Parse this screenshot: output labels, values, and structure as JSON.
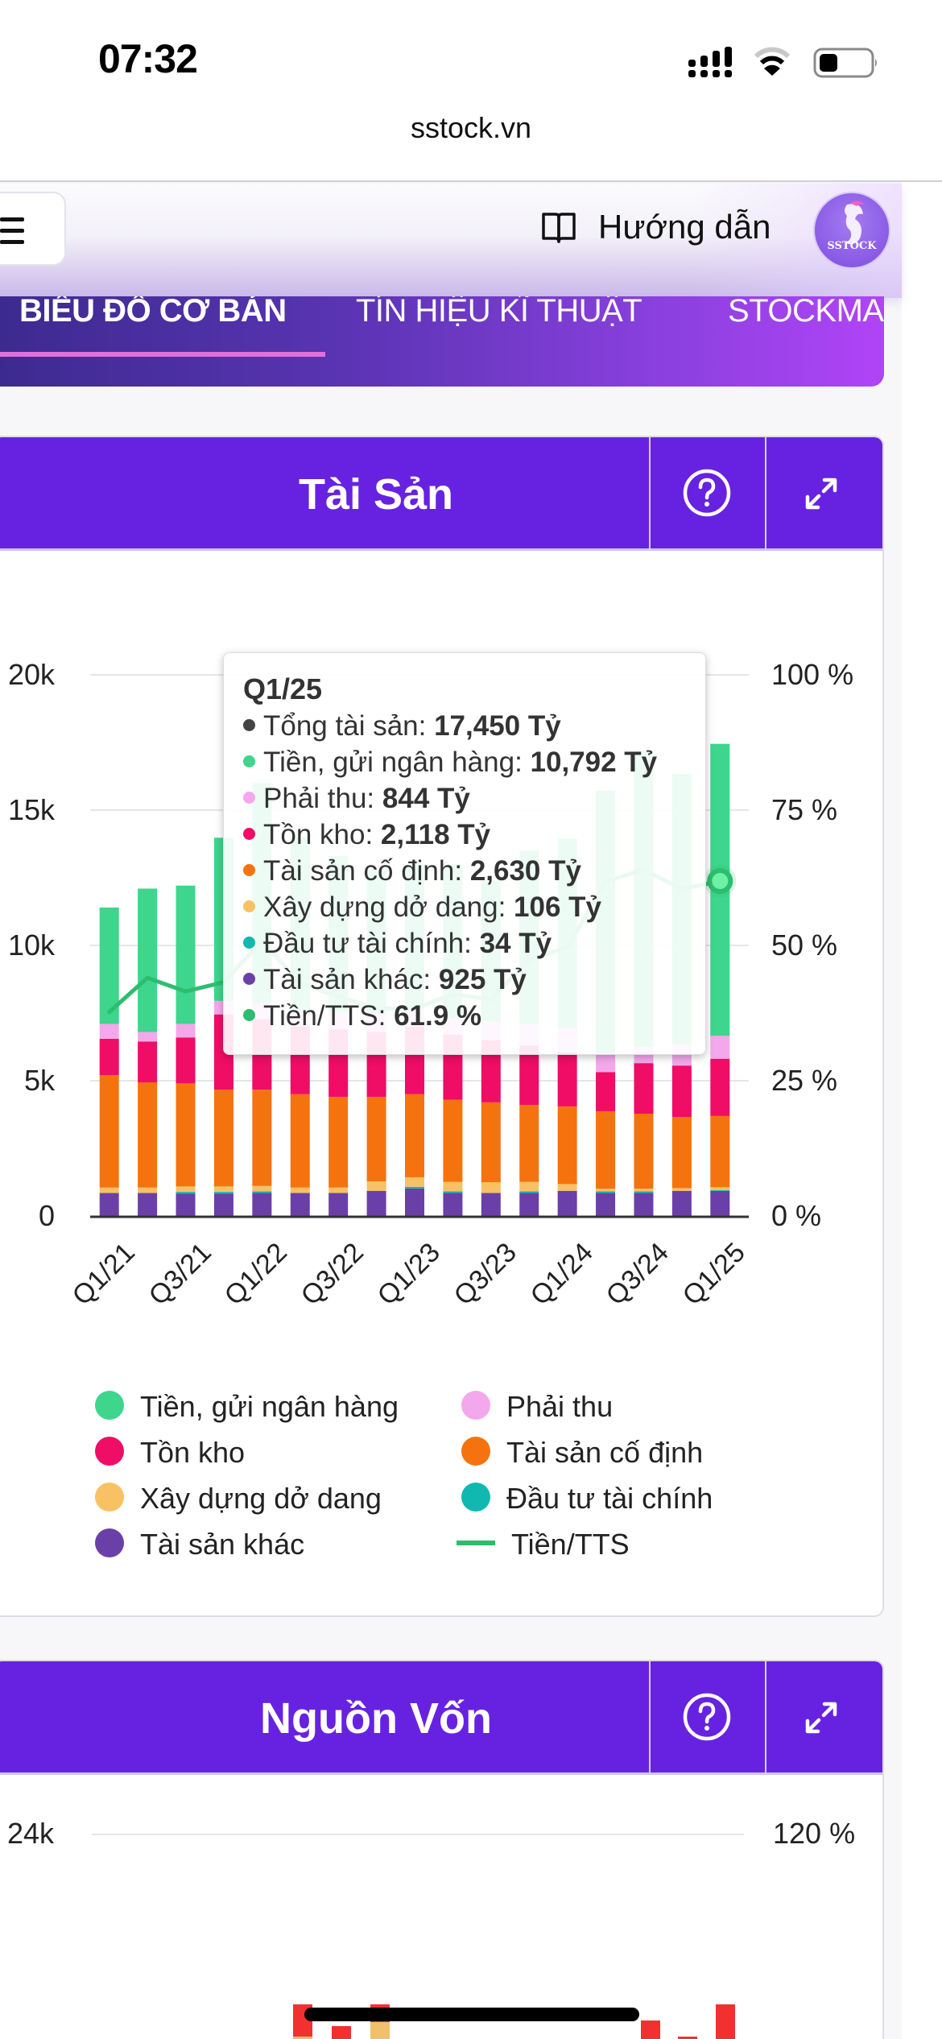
{
  "status_bar": {
    "time": "07:32",
    "signal_icon": "cellular-signal-icon",
    "wifi_icon": "wifi-icon",
    "battery_icon": "battery-low-icon"
  },
  "browser": {
    "url": "sstock.vn"
  },
  "header": {
    "menu_icon": "hamburger-menu-icon",
    "guide_label": "Hướng dẫn",
    "guide_icon": "book-open-icon",
    "logo_text": "SSTOCK"
  },
  "tabs": [
    {
      "label": "BIỂU ĐỒ CƠ BẢN",
      "active": true
    },
    {
      "label": "TÍN HIỆU KĨ THUẬT",
      "active": false
    },
    {
      "label": "STOCKMA",
      "active": false
    }
  ],
  "colors": {
    "brand_purple": "#6722e1",
    "tab_underline": "#e46fd8",
    "cash": "#3dd68c",
    "receivable": "#f4a8ec",
    "inventory": "#ef0d66",
    "fixed_assets": "#f5730f",
    "construction": "#f8c163",
    "financial_invest": "#10b8b0",
    "other_assets": "#6b3fa8",
    "ratio_line": "#2dbd6e"
  },
  "cards": [
    {
      "title": "Tài Sản",
      "help_icon": "question-circle-icon",
      "expand_icon": "expand-arrows-icon"
    },
    {
      "title": "Nguồn Vốn",
      "help_icon": "question-circle-icon",
      "expand_icon": "expand-arrows-icon"
    }
  ],
  "chart_data": [
    {
      "type": "bar",
      "stacked": true,
      "title": "Tài Sản",
      "categories": [
        "Q1/21",
        "Q2/21",
        "Q3/21",
        "Q4/21",
        "Q1/22",
        "Q2/22",
        "Q3/22",
        "Q4/22",
        "Q1/23",
        "Q2/23",
        "Q3/23",
        "Q4/23",
        "Q1/24",
        "Q2/24",
        "Q3/24",
        "Q4/24",
        "Q1/25"
      ],
      "x_tick_labels": [
        "Q1/21",
        "Q3/21",
        "Q1/22",
        "Q3/22",
        "Q1/23",
        "Q3/23",
        "Q1/24",
        "Q3/24",
        "Q1/25"
      ],
      "ylim": [
        0,
        20000
      ],
      "y_ticks": [
        "0",
        "5k",
        "10k",
        "15k",
        "20k"
      ],
      "y2lim": [
        0,
        100
      ],
      "y2_ticks": [
        "0 %",
        "25 %",
        "50 %",
        "75 %",
        "100 %"
      ],
      "grid": true,
      "legend_position": "bottom",
      "series": [
        {
          "name": "Tài sản khác",
          "color_key": "other_assets",
          "values": [
            850,
            850,
            830,
            830,
            850,
            850,
            850,
            930,
            1020,
            850,
            850,
            850,
            930,
            850,
            850,
            930,
            925
          ]
        },
        {
          "name": "Đầu tư tài chính",
          "color_key": "financial_invest",
          "values": [
            0,
            0,
            60,
            60,
            60,
            0,
            0,
            0,
            60,
            60,
            0,
            60,
            0,
            60,
            60,
            0,
            34
          ]
        },
        {
          "name": "Xây dựng dở dang",
          "color_key": "construction",
          "values": [
            200,
            200,
            200,
            200,
            200,
            200,
            200,
            350,
            350,
            350,
            400,
            350,
            250,
            100,
            100,
            100,
            106
          ]
        },
        {
          "name": "Tài sản cố định",
          "color_key": "fixed_assets",
          "values": [
            4150,
            3890,
            3810,
            3580,
            3560,
            3450,
            3350,
            3120,
            3070,
            3040,
            2950,
            2840,
            2870,
            2860,
            2770,
            2630,
            2630
          ]
        },
        {
          "name": "Tồn kho",
          "color_key": "inventory",
          "values": [
            1350,
            1510,
            1700,
            2780,
            2600,
            2500,
            2500,
            2400,
            2500,
            2400,
            2300,
            2200,
            2000,
            1450,
            1870,
            1900,
            2118
          ]
        },
        {
          "name": "Phải thu",
          "color_key": "receivable",
          "values": [
            550,
            350,
            500,
            500,
            600,
            600,
            650,
            700,
            700,
            600,
            700,
            800,
            900,
            700,
            600,
            800,
            844
          ]
        },
        {
          "name": "Tiền, gửi ngân hàng",
          "color_key": "cash",
          "values": [
            4300,
            5300,
            5110,
            6030,
            8130,
            6400,
            5750,
            5300,
            5300,
            5700,
            5200,
            6400,
            7000,
            9700,
            10950,
            9990,
            10792
          ]
        }
      ],
      "line_series": {
        "name": "Tiền/TTS",
        "axis": "right",
        "color_key": "ratio_line",
        "values": [
          37.7,
          44.0,
          41.5,
          43.2,
          50.8,
          43.0,
          40.5,
          38.4,
          38.3,
          41.0,
          40.0,
          47.4,
          49.6,
          61.8,
          64.0,
          60.4,
          61.9
        ]
      },
      "tooltip": {
        "title": "Q1/25",
        "rows": [
          {
            "label": "Tổng tài sản:",
            "value": "17,450 Tỷ",
            "color": "#444444"
          },
          {
            "label": "Tiền, gửi ngân hàng:",
            "value": "10,792 Tỷ",
            "color": "#3dd68c"
          },
          {
            "label": "Phải thu:",
            "value": "844 Tỷ",
            "color": "#f4a8ec"
          },
          {
            "label": "Tồn kho:",
            "value": "2,118 Tỷ",
            "color": "#ef0d66"
          },
          {
            "label": "Tài sản cố định:",
            "value": "2,630 Tỷ",
            "color": "#f5730f"
          },
          {
            "label": "Xây dựng dở dang:",
            "value": "106 Tỷ",
            "color": "#f8c163"
          },
          {
            "label": "Đầu tư tài chính:",
            "value": "34 Tỷ",
            "color": "#10b8b0"
          },
          {
            "label": "Tài sản khác:",
            "value": "925 Tỷ",
            "color": "#6b3fa8"
          },
          {
            "label": "Tiền/TTS:",
            "value": "61.9 %",
            "color": "#2dbd6e"
          }
        ]
      },
      "legend": [
        {
          "label": "Tiền, gửi ngân hàng",
          "color": "#3dd68c",
          "shape": "dot"
        },
        {
          "label": "Phải thu",
          "color": "#f4a8ec",
          "shape": "dot"
        },
        {
          "label": "Tồn kho",
          "color": "#ef0d66",
          "shape": "dot"
        },
        {
          "label": "Tài sản cố định",
          "color": "#f5730f",
          "shape": "dot"
        },
        {
          "label": "Xây dựng dở dang",
          "color": "#f8c163",
          "shape": "dot"
        },
        {
          "label": "Đầu tư tài chính",
          "color": "#10b8b0",
          "shape": "dot"
        },
        {
          "label": "Tài sản khác",
          "color": "#6b3fa8",
          "shape": "dot"
        },
        {
          "label": "Tiền/TTS",
          "color": "#2dbd6e",
          "shape": "line"
        }
      ]
    },
    {
      "type": "bar",
      "title": "Nguồn Vốn",
      "y_ticks_visible": [
        "24k"
      ],
      "y2_ticks_visible": [
        "120 %"
      ]
    }
  ]
}
